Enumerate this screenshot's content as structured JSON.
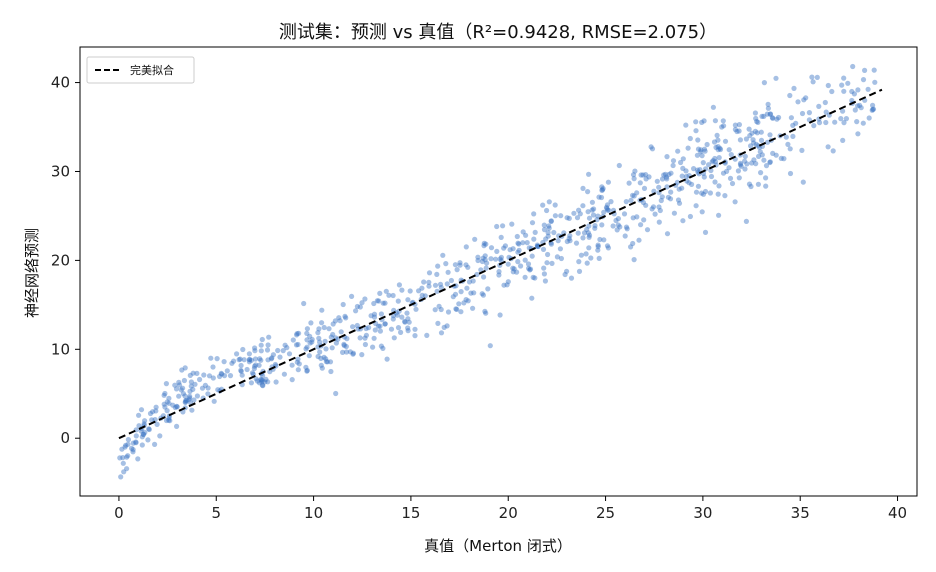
{
  "chart_data": {
    "type": "scatter",
    "title": "测试集：预测 vs 真值（R²=0.9428, RMSE=2.075）",
    "xlabel": "真值（Merton 闭式）",
    "ylabel": "神经网络预测",
    "xlim": [
      -2,
      41
    ],
    "ylim": [
      -6.5,
      44
    ],
    "xticks": [
      0,
      5,
      10,
      15,
      20,
      25,
      30,
      35,
      40
    ],
    "yticks": [
      0,
      10,
      20,
      30,
      40
    ],
    "grid": false,
    "legend": {
      "placement": "top-left",
      "entries": [
        "完美拟合"
      ]
    },
    "colors": {
      "points": "#3a74c4",
      "fit_line": "#000000"
    },
    "series": [
      {
        "kind": "scatter",
        "n_points": 880,
        "x_range": [
          0,
          39
        ],
        "marker": "circle",
        "alpha": 0.45
      },
      {
        "kind": "line",
        "style": "dashed",
        "name": "完美拟合",
        "x": [
          0,
          39.2
        ],
        "y": [
          0,
          39.2
        ]
      }
    ]
  }
}
